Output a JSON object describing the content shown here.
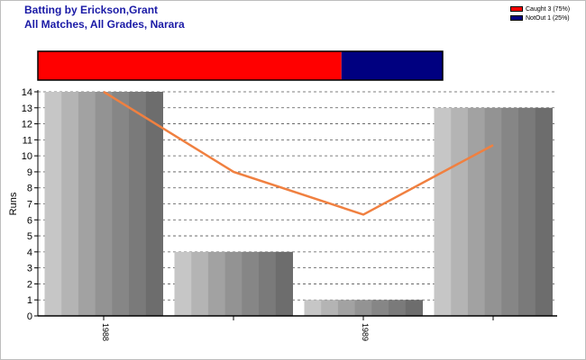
{
  "header": {
    "title_line1": "Batting by Erickson,Grant",
    "title_line2": "All Matches, All Grades, Narara"
  },
  "legend": [
    {
      "label": "Caught 3 (75%)",
      "color": "#ff0000"
    },
    {
      "label": "NotOut 1 (25%)",
      "color": "#000080"
    }
  ],
  "chart_data": {
    "type": "bar",
    "ylabel": "Runs",
    "ylim": [
      0,
      14
    ],
    "yticks": [
      "0",
      "1",
      "2",
      "3",
      "4",
      "5",
      "6",
      "7",
      "8",
      "9",
      "10",
      "11",
      "12",
      "13",
      "14"
    ],
    "grid": true,
    "bars": [
      14,
      4,
      1,
      13
    ],
    "x_labels": [
      "1988",
      "1989"
    ],
    "trend_line": [
      14,
      9,
      6.33,
      10.67
    ],
    "trend_color": "#f08040",
    "dismissal_bar": [
      {
        "name": "Caught",
        "fraction": 0.75,
        "color": "#ff0000"
      },
      {
        "name": "NotOut",
        "fraction": 0.25,
        "color": "#000080"
      }
    ]
  }
}
